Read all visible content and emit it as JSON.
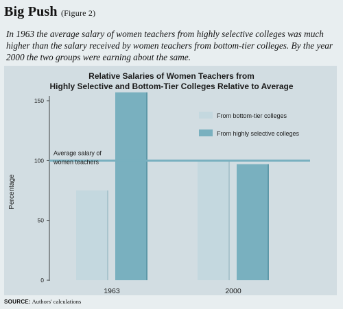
{
  "header": {
    "title": "Big Push",
    "figure_ref": "(Figure 2)",
    "description": "In 1963 the average salary of women teachers from highly selective colleges was much higher than the salary received by women teachers from bottom-tier colleges. By the year 2000 the two groups were earning about the same."
  },
  "source": {
    "label": "SOURCE:",
    "text": "Authors' calculations"
  },
  "chart_data": {
    "type": "bar",
    "title_lines": [
      "Relative Salaries of Women Teachers from",
      "Highly Selective and Bottom-Tier Colleges Relative to Average"
    ],
    "categories": [
      "1963",
      "2000"
    ],
    "series": [
      {
        "name": "From bottom-tier colleges",
        "values": [
          75,
          100
        ],
        "color": "#c4d8df"
      },
      {
        "name": "From highly selective colleges",
        "values": [
          157,
          97
        ],
        "color": "#79b0bf"
      }
    ],
    "ylabel": "Percentage",
    "ylim": [
      0,
      160
    ],
    "yticks": [
      0,
      50,
      100,
      150
    ],
    "reference_line": {
      "value": 100,
      "label_lines": [
        "Average salary of",
        "women teachers"
      ],
      "color": "#79b0bf"
    },
    "legend_position": "top-right",
    "grid": false
  }
}
